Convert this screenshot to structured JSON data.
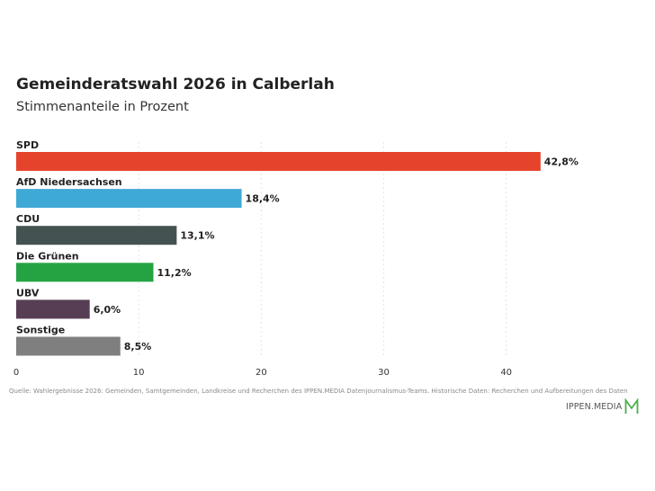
{
  "header": {
    "title": "Gemeinderatswahl 2026 in Calberlah",
    "subtitle": "Stimmenanteile in Prozent"
  },
  "chart_data": {
    "type": "bar",
    "orientation": "horizontal",
    "categories": [
      "SPD",
      "AfD Niedersachsen",
      "CDU",
      "Die Grünen",
      "UBV",
      "Sonstige"
    ],
    "values": [
      42.8,
      18.4,
      13.1,
      11.2,
      6.0,
      8.5
    ],
    "value_labels": [
      "42,8%",
      "18,4%",
      "13,1%",
      "11,2%",
      "6,0%",
      "8,5%"
    ],
    "colors": [
      "#e6432c",
      "#3fa9d5",
      "#455252",
      "#25a343",
      "#583e55",
      "#7f7f7f"
    ],
    "x_ticks": [
      0,
      10,
      20,
      30,
      40
    ],
    "xlim": [
      0,
      51.7
    ],
    "grid": true,
    "title": "Gemeinderatswahl 2026 in Calberlah",
    "subtitle": "Stimmenanteile in Prozent"
  },
  "footer": {
    "source": "Quelle: Wahlergebnisse 2026: Gemeinden, Samtgemeinden, Landkreise und Recherchen des IPPEN.MEDIA Datenjournalismus-Teams. Historische Daten: Recherchen und Aufbereitungen des Daten",
    "logo_text": "IPPEN.MEDIA",
    "logo_icon": "ippen-media-m-icon",
    "logo_color": "#4caf50"
  }
}
